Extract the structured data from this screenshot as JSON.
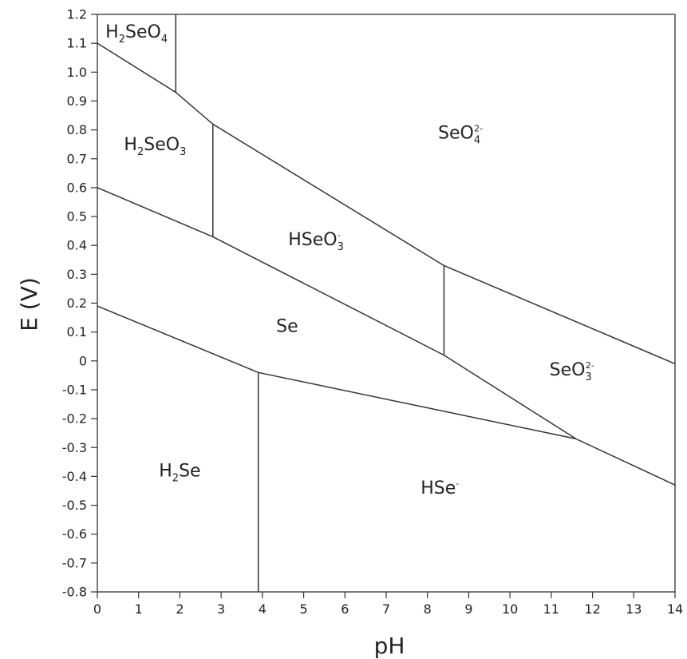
{
  "chart_data": {
    "type": "line",
    "title": "",
    "xlabel": "pH",
    "ylabel": "E (V)",
    "xlim": [
      0,
      14
    ],
    "ylim": [
      -0.8,
      1.2
    ],
    "x_ticks": [
      "0",
      "1",
      "2",
      "3",
      "4",
      "5",
      "6",
      "7",
      "8",
      "9",
      "10",
      "11",
      "12",
      "13",
      "14"
    ],
    "y_ticks": [
      "1.2",
      "1.1",
      "1.0",
      "0.9",
      "0.8",
      "0.7",
      "0.6",
      "0.5",
      "0.4",
      "0.3",
      "0.2",
      "0.1",
      "0",
      "-0.1",
      "-0.2",
      "-0.3",
      "-0.4",
      "-0.5",
      "-0.6",
      "-0.7",
      "-0.8"
    ],
    "grid": false,
    "boundaries": [
      {
        "points": [
          [
            0,
            1.1
          ],
          [
            1.9,
            0.93
          ],
          [
            2.8,
            0.82
          ],
          [
            8.4,
            0.33
          ],
          [
            14,
            -0.01
          ]
        ]
      },
      {
        "points": [
          [
            1.9,
            1.2
          ],
          [
            1.9,
            0.93
          ]
        ]
      },
      {
        "points": [
          [
            2.8,
            0.82
          ],
          [
            2.8,
            0.43
          ]
        ]
      },
      {
        "points": [
          [
            0,
            0.6
          ],
          [
            2.8,
            0.43
          ],
          [
            8.4,
            0.02
          ],
          [
            11.6,
            -0.27
          ],
          [
            14,
            -0.43
          ]
        ]
      },
      {
        "points": [
          [
            8.4,
            0.33
          ],
          [
            8.4,
            0.02
          ]
        ]
      },
      {
        "points": [
          [
            0,
            0.19
          ],
          [
            3.9,
            -0.04
          ],
          [
            11.6,
            -0.27
          ]
        ]
      },
      {
        "points": [
          [
            3.9,
            -0.04
          ],
          [
            3.9,
            -0.8
          ]
        ]
      }
    ],
    "regions": [
      {
        "base": "H",
        "base_sub": "2",
        "rest": "SeO",
        "sub": "4",
        "sup": "",
        "x": 0.95,
        "y": 1.12
      },
      {
        "base": "H",
        "base_sub": "2",
        "rest": "SeO",
        "sub": "3",
        "sup": "",
        "x": 1.4,
        "y": 0.73
      },
      {
        "base": "SeO",
        "base_sub": "",
        "rest": "",
        "sub": "4",
        "sup": "2-",
        "x": 8.8,
        "y": 0.77
      },
      {
        "base": "HSeO",
        "base_sub": "",
        "rest": "",
        "sub": "3",
        "sup": "-",
        "x": 5.3,
        "y": 0.4
      },
      {
        "base": "Se",
        "base_sub": "",
        "rest": "",
        "sub": "",
        "sup": "",
        "x": 4.6,
        "y": 0.1
      },
      {
        "base": "SeO",
        "base_sub": "",
        "rest": "",
        "sub": "3",
        "sup": "2-",
        "x": 11.5,
        "y": -0.05
      },
      {
        "base": "H",
        "base_sub": "2",
        "rest": "Se",
        "sub": "",
        "sup": "",
        "x": 2.0,
        "y": -0.4
      },
      {
        "base": "HSe",
        "base_sub": "",
        "rest": "",
        "sub": "",
        "sup": "-",
        "x": 8.3,
        "y": -0.46
      }
    ]
  }
}
